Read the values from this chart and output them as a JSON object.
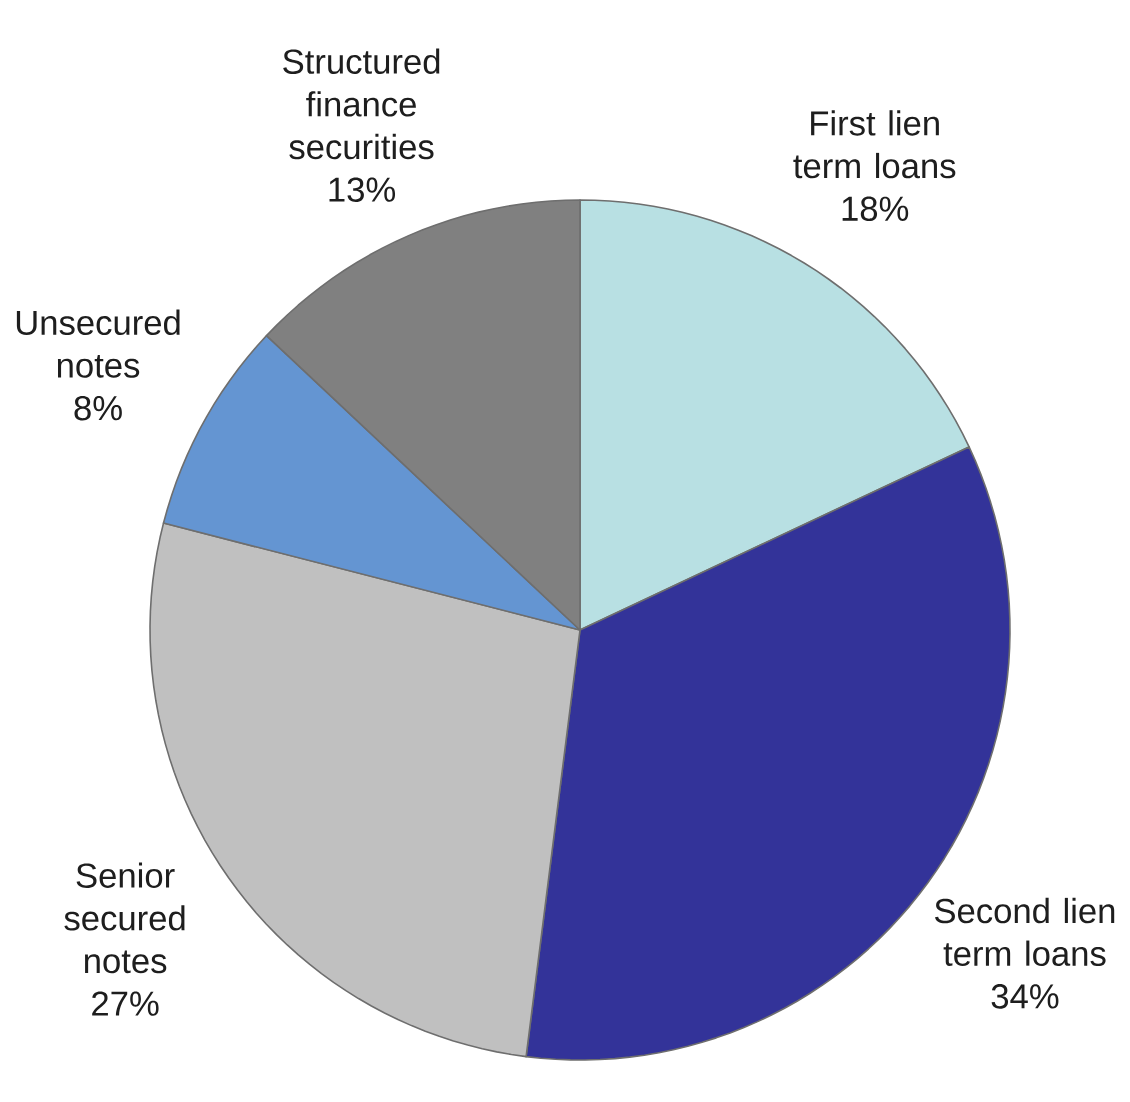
{
  "chart_data": {
    "type": "pie",
    "categories": [
      "First lien term loans",
      "Second lien term loans",
      "Senior secured notes",
      "Unsecured notes",
      "Structured finance securities"
    ],
    "values": [
      18,
      34,
      27,
      8,
      13
    ],
    "value_labels": [
      "18%",
      "34%",
      "27%",
      "8%",
      "13%"
    ],
    "colors": [
      "#b8e0e3",
      "#333399",
      "#c0c0c0",
      "#6495d2",
      "#808080"
    ]
  }
}
